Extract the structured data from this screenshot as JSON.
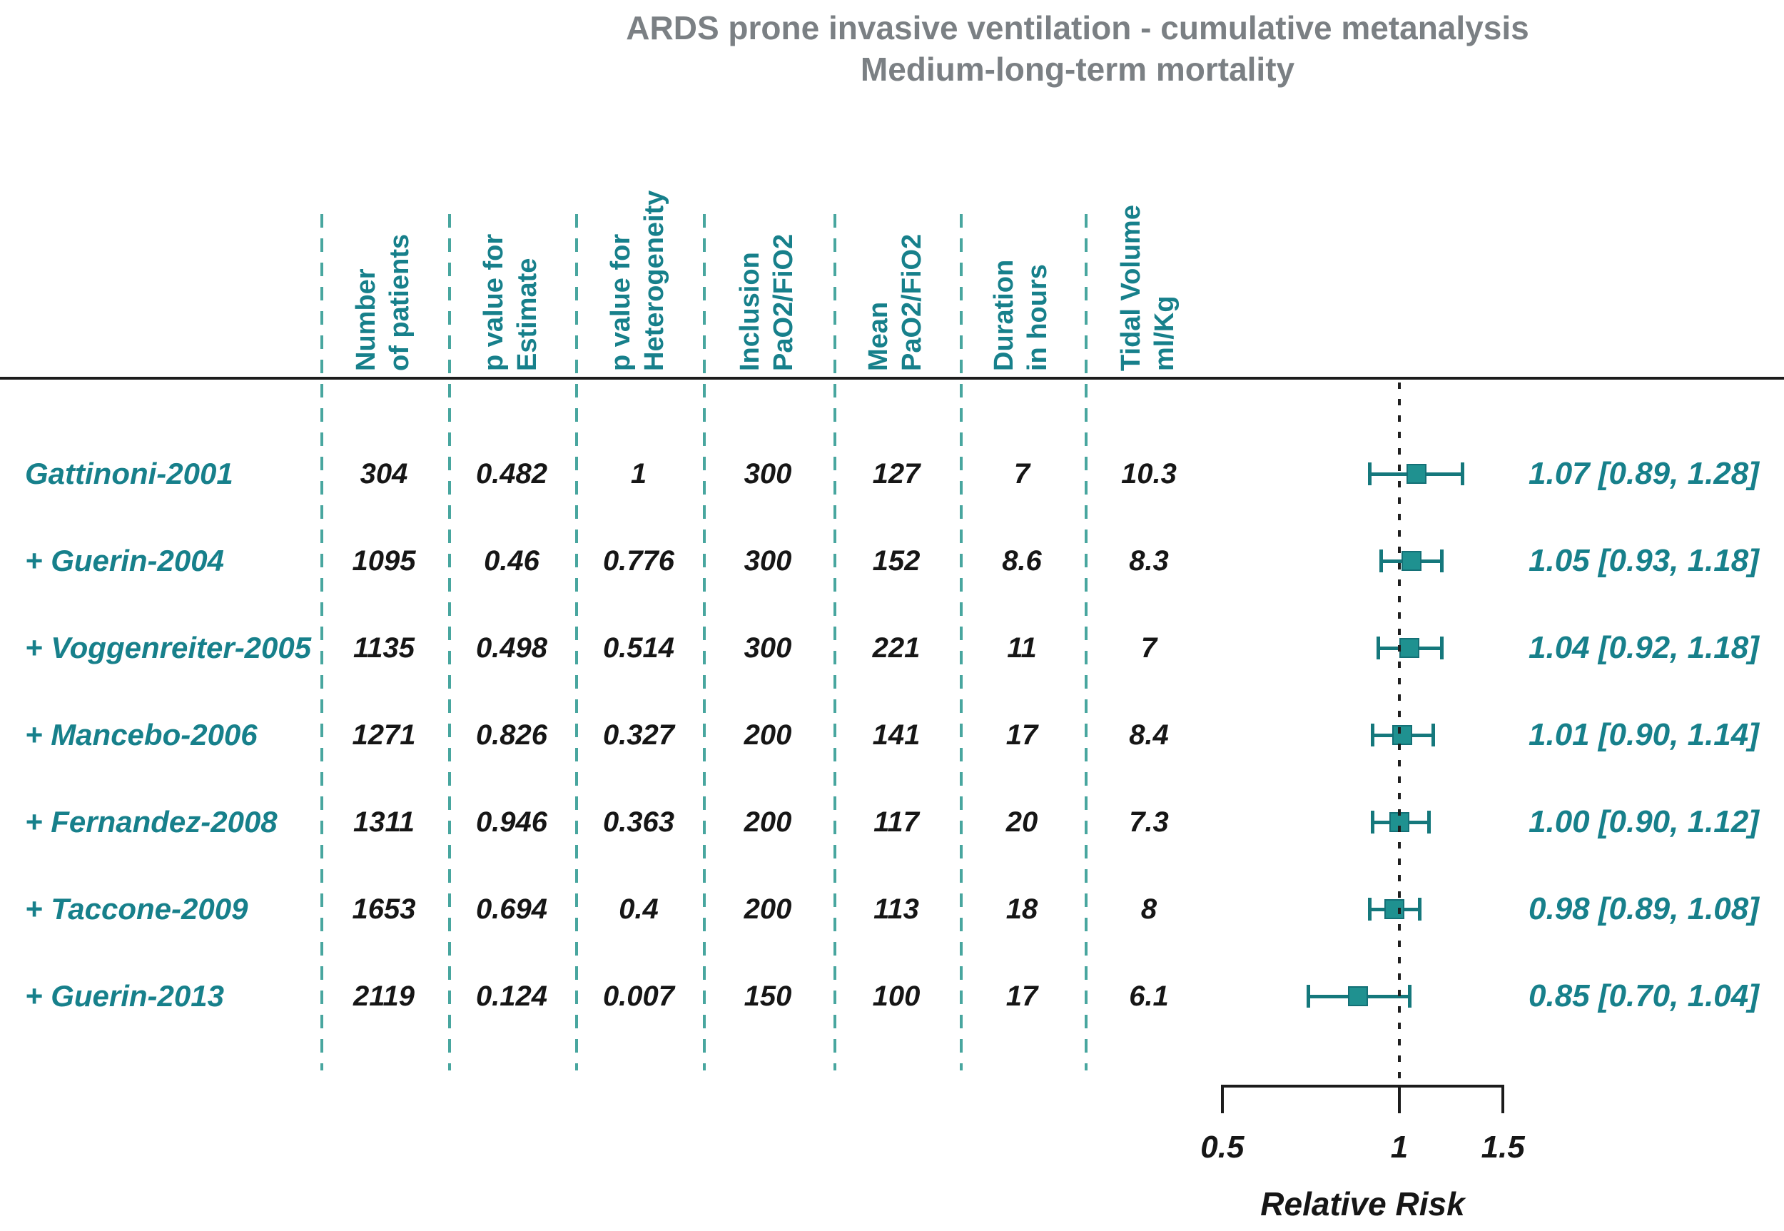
{
  "title": {
    "line1": "ARDS prone invasive ventilation - cumulative metanalysis",
    "line2": "Medium-long-term mortality"
  },
  "columns": [
    {
      "key": "n_patients",
      "label_lines": [
        "Number",
        "of patients"
      ]
    },
    {
      "key": "p_estimate",
      "label_lines": [
        "p value for",
        "Estimate"
      ]
    },
    {
      "key": "p_heterogeneity",
      "label_lines": [
        "p value for",
        "Heterogeneity"
      ]
    },
    {
      "key": "inclusion_pao2_fio2",
      "label_lines": [
        "Inclusion",
        "PaO2/FiO2"
      ]
    },
    {
      "key": "mean_pao2_fio2",
      "label_lines": [
        "Mean",
        "PaO2/FiO2"
      ]
    },
    {
      "key": "duration_hours",
      "label_lines": [
        "Duration",
        "in hours"
      ]
    },
    {
      "key": "tidal_volume_ml_kg",
      "label_lines": [
        "Tidal Volume",
        "ml/Kg"
      ]
    }
  ],
  "axis": {
    "label": "Relative Risk",
    "scale": "log",
    "min": 0.5,
    "max": 1.5,
    "tick_values": [
      0.5,
      1,
      1.5
    ],
    "tick_labels": [
      "0.5",
      "1",
      "1.5"
    ],
    "reference": 1
  },
  "chart_data": {
    "type": "scatter",
    "subtype": "forest-plot-cumulative-metaanalysis",
    "title": "ARDS prone invasive ventilation - cumulative metanalysis / Medium-long-term mortality",
    "xlabel": "Relative Risk",
    "x_scale": "log",
    "xlim": [
      0.5,
      1.5
    ],
    "x_ticks": [
      0.5,
      1,
      1.5
    ],
    "reference_line": 1,
    "legend_position": "none",
    "grid": false,
    "points": [
      {
        "study": "Gattinoni-2001",
        "n_patients": "304",
        "p_estimate": "0.482",
        "p_heterogeneity": "1",
        "inclusion_pao2_fio2": "300",
        "mean_pao2_fio2": "127",
        "duration_hours": "7",
        "tidal_volume_ml_kg": "10.3",
        "rr": 1.07,
        "ci_low": 0.89,
        "ci_high": 1.28,
        "estimate_label": "1.07 [0.89, 1.28]"
      },
      {
        "study": "+ Guerin-2004",
        "n_patients": "1095",
        "p_estimate": "0.46",
        "p_heterogeneity": "0.776",
        "inclusion_pao2_fio2": "300",
        "mean_pao2_fio2": "152",
        "duration_hours": "8.6",
        "tidal_volume_ml_kg": "8.3",
        "rr": 1.05,
        "ci_low": 0.93,
        "ci_high": 1.18,
        "estimate_label": "1.05 [0.93, 1.18]"
      },
      {
        "study": "+ Voggenreiter-2005",
        "n_patients": "1135",
        "p_estimate": "0.498",
        "p_heterogeneity": "0.514",
        "inclusion_pao2_fio2": "300",
        "mean_pao2_fio2": "221",
        "duration_hours": "11",
        "tidal_volume_ml_kg": "7",
        "rr": 1.04,
        "ci_low": 0.92,
        "ci_high": 1.18,
        "estimate_label": "1.04 [0.92, 1.18]"
      },
      {
        "study": "+ Mancebo-2006",
        "n_patients": "1271",
        "p_estimate": "0.826",
        "p_heterogeneity": "0.327",
        "inclusion_pao2_fio2": "200",
        "mean_pao2_fio2": "141",
        "duration_hours": "17",
        "tidal_volume_ml_kg": "8.4",
        "rr": 1.01,
        "ci_low": 0.9,
        "ci_high": 1.14,
        "estimate_label": "1.01 [0.90, 1.14]"
      },
      {
        "study": "+ Fernandez-2008",
        "n_patients": "1311",
        "p_estimate": "0.946",
        "p_heterogeneity": "0.363",
        "inclusion_pao2_fio2": "200",
        "mean_pao2_fio2": "117",
        "duration_hours": "20",
        "tidal_volume_ml_kg": "7.3",
        "rr": 1.0,
        "ci_low": 0.9,
        "ci_high": 1.12,
        "estimate_label": "1.00 [0.90, 1.12]"
      },
      {
        "study": "+ Taccone-2009",
        "n_patients": "1653",
        "p_estimate": "0.694",
        "p_heterogeneity": "0.4",
        "inclusion_pao2_fio2": "200",
        "mean_pao2_fio2": "113",
        "duration_hours": "18",
        "tidal_volume_ml_kg": "8",
        "rr": 0.98,
        "ci_low": 0.89,
        "ci_high": 1.08,
        "estimate_label": "0.98 [0.89, 1.08]"
      },
      {
        "study": "+ Guerin-2013",
        "n_patients": "2119",
        "p_estimate": "0.124",
        "p_heterogeneity": "0.007",
        "inclusion_pao2_fio2": "150",
        "mean_pao2_fio2": "100",
        "duration_hours": "17",
        "tidal_volume_ml_kg": "6.1",
        "rr": 0.85,
        "ci_low": 0.7,
        "ci_high": 1.04,
        "estimate_label": "0.85 [0.70, 1.04]"
      }
    ]
  },
  "colors": {
    "title_gray": "#7b8084",
    "teal_text": "#17808b",
    "teal_dashed": "#48a69f",
    "marker_teal": "#1f9190",
    "black": "#161616"
  }
}
